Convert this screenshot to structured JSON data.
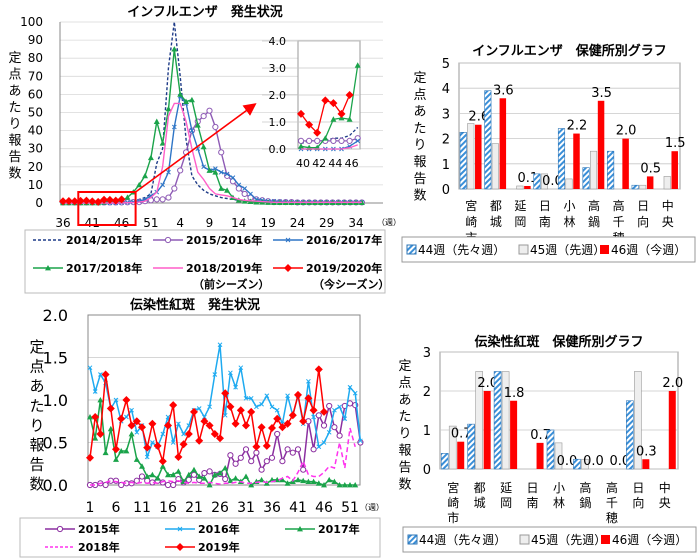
{
  "chart_data": [
    {
      "type": "line",
      "title": "インフルエンザ　発生状況",
      "ylabel": "定点あたり報告数",
      "xunit": "（週）",
      "ylim": [
        0,
        100
      ],
      "yticks": [
        "0",
        "10",
        "20",
        "30",
        "40",
        "50",
        "60",
        "70",
        "80",
        "90",
        "100"
      ],
      "xticks": [
        "36",
        "41",
        "46",
        "51",
        "4",
        "9",
        "14",
        "19",
        "24",
        "29",
        "34"
      ],
      "grid": true,
      "legend_position": "bottom",
      "weeks": [
        "36",
        "37",
        "38",
        "39",
        "40",
        "41",
        "42",
        "43",
        "44",
        "45",
        "46",
        "47",
        "48",
        "49",
        "50",
        "51",
        "52",
        "1",
        "2",
        "3",
        "4",
        "5",
        "6",
        "7",
        "8",
        "9",
        "10",
        "11",
        "12",
        "13",
        "14",
        "15",
        "16",
        "17",
        "18",
        "19",
        "20",
        "21",
        "22",
        "23",
        "24",
        "25",
        "26",
        "27",
        "28",
        "29",
        "30",
        "31",
        "32",
        "33",
        "34",
        "35"
      ],
      "series": [
        {
          "name": "2014/2015年",
          "sub": "",
          "color": "#1f3c88",
          "marker": "none",
          "dash": true,
          "values": [
            0.2,
            0.2,
            0.2,
            0.2,
            0.2,
            0.3,
            0.3,
            0.3,
            0.4,
            0.4,
            0.5,
            0.8,
            1.2,
            2,
            3,
            5,
            22,
            30,
            75,
            100,
            70,
            35,
            15,
            10,
            7,
            5,
            4,
            3,
            2.5,
            2,
            1.5,
            1.2,
            1,
            0.8,
            0.6,
            0.5,
            0.4,
            0.4,
            0.4,
            0.3,
            0.3,
            0.3,
            0.3,
            0.3,
            0.2,
            0.2,
            0.2,
            0.2,
            0.2,
            0.2,
            0.2,
            0.2
          ]
        },
        {
          "name": "2015/2016年",
          "sub": "",
          "color": "#8e5bb5",
          "marker": "circle",
          "dash": false,
          "values": [
            0.3,
            0.3,
            0.3,
            0.3,
            0.3,
            0.3,
            0.3,
            0.3,
            0.3,
            0.3,
            0.3,
            0.4,
            0.5,
            0.5,
            1,
            1.5,
            2,
            2,
            3,
            8,
            18,
            28,
            40,
            45,
            48,
            51,
            42,
            28,
            15,
            12,
            8,
            5,
            3,
            2,
            1.5,
            1,
            0.5,
            0.5,
            0.5,
            0.5,
            0.3,
            0.3,
            0.3,
            0.3,
            0.3,
            0.3,
            0.3,
            0.3,
            0.3,
            0.3,
            0.3,
            0.3
          ]
        },
        {
          "name": "2016/2017年",
          "sub": "",
          "color": "#2e75c6",
          "marker": "x",
          "dash": false,
          "values": [
            0,
            0,
            0,
            0,
            0,
            0,
            0,
            0,
            0,
            0,
            0.1,
            0.3,
            0.6,
            1,
            2,
            4,
            6,
            10,
            17,
            42,
            59,
            55,
            40,
            30,
            20,
            18,
            19,
            17,
            16,
            14,
            10,
            8,
            5,
            2,
            1.5,
            1,
            1,
            0.8,
            0.6,
            0.5,
            0.5,
            0.4,
            0.4,
            0.4,
            0.4,
            0.4,
            0.4,
            0.4,
            0.4,
            0.4,
            0.4,
            0.4
          ]
        },
        {
          "name": "2017/2018年",
          "sub": "",
          "color": "#1aa34a",
          "marker": "triangle",
          "dash": false,
          "values": [
            0.1,
            0.1,
            0.1,
            0.1,
            0.1,
            0.05,
            0.05,
            0.4,
            1.1,
            1.15,
            1.1,
            3.1,
            6,
            10,
            15,
            25,
            45,
            33,
            52,
            85,
            60,
            56,
            57,
            43,
            31,
            18,
            17,
            8,
            7,
            3,
            1.5,
            1,
            0.8,
            0.5,
            0.4,
            0.3,
            0.2,
            0.2,
            0.2,
            0.2,
            0.2,
            0.2,
            0.2,
            0.2,
            0.2,
            0.2,
            0.2,
            0.2,
            0.2,
            0.2,
            0.2,
            0.2
          ]
        },
        {
          "name": "2018/2019年",
          "sub": "（前シーズン）",
          "color": "#ff5fc8",
          "marker": "none",
          "dash": false,
          "values": [
            0,
            0,
            0,
            0,
            0,
            0,
            0,
            0,
            0,
            0,
            0.05,
            0.15,
            0.3,
            0.5,
            1,
            3,
            6,
            20,
            48,
            55,
            55,
            45,
            30,
            17,
            13,
            8,
            5,
            4.5,
            4,
            3,
            2,
            1.5,
            1.2,
            1,
            0.8,
            0.6,
            0.4,
            0.4,
            0.4,
            0.4,
            0.4,
            0.4,
            0.4,
            0.4,
            0.4,
            0.4,
            0.4,
            0.4,
            0.4,
            0.4,
            0.4,
            0.4
          ]
        },
        {
          "name": "2019/2020年",
          "sub": "（今シーズン）",
          "color": "#ff0000",
          "marker": "diamond",
          "dash": false,
          "values": [
            1.0,
            1.1,
            1.0,
            1.2,
            1.3,
            0.9,
            0.6,
            1.8,
            1.7,
            1.3,
            2.0
          ]
        }
      ],
      "inset": {
        "ylim": [
          0,
          4
        ],
        "yticks": [
          "0.0",
          "1.0",
          "2.0",
          "3.0",
          "4.0"
        ],
        "xticks": [
          "40",
          "42",
          "44",
          "46"
        ],
        "weeks_shown": [
          "40",
          "41",
          "42",
          "43",
          "44",
          "45",
          "46",
          "47"
        ]
      },
      "highlight_weeks": [
        "41",
        "46"
      ]
    },
    {
      "type": "bar",
      "title": "インフルエンザ　保健所別グラフ",
      "ylabel": "定点あたり報告数",
      "ylim": [
        0,
        5
      ],
      "yticks": [
        "0",
        "1",
        "2",
        "3",
        "4",
        "5"
      ],
      "grid": true,
      "legend_position": "bottom",
      "categories": [
        "宮崎市",
        "都城",
        "延岡",
        "日南",
        "小林",
        "高鍋",
        "高千穂",
        "日向",
        "中央"
      ],
      "series": [
        {
          "name": "44週（先々週）",
          "color": "#2e75b6",
          "pattern": "hatch",
          "values": [
            2.25,
            3.9,
            0,
            0.6,
            2.4,
            0.85,
            1.5,
            0.15,
            0
          ]
        },
        {
          "name": "45週（先週）",
          "color": "#d9d9d9",
          "pattern": "solid",
          "values": [
            2.6,
            1.8,
            0.12,
            0.6,
            0.4,
            1.5,
            0,
            0.15,
            0.5
          ]
        },
        {
          "name": "46週（今週）",
          "color": "#ff0000",
          "pattern": "solid",
          "values": [
            2.55,
            3.6,
            0.12,
            0,
            2.2,
            3.5,
            2.0,
            0.5,
            1.5
          ]
        }
      ],
      "data_labels": [
        "2.6",
        "3.6",
        "0.1",
        "0.0",
        "2.2",
        "3.5",
        "2.0",
        "0.5",
        "1.5"
      ]
    },
    {
      "type": "line",
      "title": "伝染性紅斑　発生状況",
      "ylabel": "定点あたり報告数",
      "xunit": "（週）",
      "ylim": [
        0,
        2.0
      ],
      "xlim": [
        1,
        53
      ],
      "yticks": [
        "0.0",
        "0.5",
        "1.0",
        "1.5",
        "2.0"
      ],
      "xticks": [
        "1",
        "6",
        "11",
        "16",
        "21",
        "26",
        "31",
        "36",
        "41",
        "46",
        "51"
      ],
      "grid": true,
      "legend_position": "bottom",
      "series": [
        {
          "name": "2015年",
          "color": "#8b2fa0",
          "marker": "circle",
          "dash": false,
          "values": [
            0,
            0,
            0.02,
            0,
            0.05,
            0.05,
            0,
            0.02,
            0.02,
            0.05,
            0.1,
            0.05,
            0.03,
            0.05,
            0.03,
            0,
            0,
            0.07,
            0.03,
            0.06,
            0.12,
            0.06,
            0.14,
            0.16,
            0.12,
            0.13,
            0.07,
            0.35,
            0.25,
            0.32,
            0.42,
            0.28,
            0.38,
            0.18,
            0.28,
            0.32,
            0.6,
            0.28,
            0.42,
            0.38,
            0.42,
            0.18,
            0.75,
            0.42,
            0.82,
            0.7,
            0.93,
            0.68,
            0.58,
            0.93,
            0.96,
            0.94,
            0.5
          ]
        },
        {
          "name": "2016年",
          "color": "#1eaaf0",
          "marker": "x",
          "dash": false,
          "values": [
            1.38,
            1.1,
            1.3,
            1.2,
            0.9,
            1.0,
            0.75,
            0.8,
            0.88,
            0.62,
            0.7,
            0.33,
            0.5,
            0.45,
            0.6,
            0.8,
            0.5,
            0.72,
            0.6,
            0.7,
            0.88,
            0.9,
            0.8,
            0.92,
            1.3,
            1.65,
            0.82,
            1.32,
            1.15,
            1.38,
            1.02,
            1.02,
            0.92,
            0.95,
            1.05,
            0.92,
            0.88,
            0.72,
            1.05,
            0.82,
            1.05,
            0.72,
            1.22,
            0.8,
            0.45,
            0.5,
            0.62,
            0.88,
            0.92,
            0.78,
            1.15,
            1.08,
            0.52
          ]
        },
        {
          "name": "2017年",
          "color": "#1aa34a",
          "marker": "triangle",
          "dash": false,
          "values": [
            0.8,
            0.55,
            1.0,
            0.38,
            0.66,
            0.3,
            0.4,
            0.4,
            0.6,
            0.3,
            0.22,
            0.1,
            0.12,
            0.08,
            0.22,
            0.12,
            0.12,
            0.16,
            0.04,
            0.12,
            0.18,
            0.1,
            0.08,
            0,
            0.12,
            0.14,
            0.2,
            0.05,
            0.08,
            0.04,
            0.1,
            0,
            0.04,
            0.06,
            0.02,
            0.06,
            0.06,
            0.06,
            0.02,
            0.04,
            0.06,
            0.05,
            0.04,
            0.04,
            0.02,
            0,
            0.06,
            0.04,
            0,
            0,
            0,
            0
          ]
        },
        {
          "name": "2018年",
          "color": "#ff33ee",
          "marker": "none",
          "dash": true,
          "values": [
            0,
            0,
            0.02,
            0.03,
            0.05,
            0.04,
            0.03,
            0.02,
            0.03,
            0.02,
            0.03,
            0.02,
            0.03,
            0.02,
            0.04,
            0.05,
            0.04,
            0.05,
            0.03,
            0.02,
            0.03,
            0.02,
            0.02,
            0.03,
            0.02,
            0.01,
            0.02,
            0.02,
            0.03,
            0.04,
            0.02,
            0.02,
            0.03,
            0.04,
            0.03,
            0.04,
            0.05,
            0.08,
            0.1,
            0.05,
            0.15,
            0.28,
            0.12,
            0.1,
            0.1,
            0.15,
            0.22,
            0.2,
            0.5,
            0.2,
            0.67,
            0.45
          ]
        },
        {
          "name": "2019年",
          "color": "#ff0000",
          "marker": "diamond",
          "dash": false,
          "values": [
            0.32,
            0.8,
            0.6,
            1.3,
            0.9,
            0.42,
            0.78,
            1.0,
            0.7,
            0.75,
            0.68,
            0.44,
            0.72,
            0.46,
            0.28,
            0.7,
            0.94,
            0.33,
            0.48,
            0.6,
            0.86,
            0.52,
            0.75,
            0.7,
            0.6,
            0.55,
            1.08,
            0.92,
            0.72,
            0.88,
            0.7,
            0.86,
            0.45,
            0.68,
            0.46,
            0.67,
            0.78,
            0.68,
            0.72,
            0.82,
            1.06,
            0.75,
            1.02,
            0.88,
            1.36,
            0.86
          ]
        }
      ]
    },
    {
      "type": "bar",
      "title": "伝染性紅斑　保健所別グラフ",
      "ylabel": "定点あたり報告数",
      "ylim": [
        0,
        3
      ],
      "yticks": [
        "0",
        "1",
        "2",
        "3"
      ],
      "grid": true,
      "legend_position": "bottom",
      "categories": [
        "宮崎市",
        "都城",
        "延岡",
        "日南",
        "小林",
        "高鍋",
        "高千穂",
        "日向",
        "中央"
      ],
      "series": [
        {
          "name": "44週（先々週）",
          "color": "#2e75b6",
          "pattern": "hatch",
          "values": [
            0.4,
            1.15,
            2.5,
            0,
            1.0,
            0.25,
            0,
            1.75,
            0
          ]
        },
        {
          "name": "45週（先週）",
          "color": "#d9d9d9",
          "pattern": "solid",
          "values": [
            1.1,
            2.5,
            2.5,
            0,
            0.67,
            0.25,
            0,
            2.5,
            0
          ]
        },
        {
          "name": "46週（今週）",
          "color": "#ff0000",
          "pattern": "solid",
          "values": [
            0.7,
            2.0,
            1.75,
            0.67,
            0,
            0,
            0,
            0.25,
            2.0
          ]
        }
      ],
      "data_labels": [
        "0.7",
        "2.0",
        "1.8",
        "0.7",
        "0.0",
        "0.0",
        "0.0",
        "0.3",
        "2.0"
      ]
    }
  ]
}
